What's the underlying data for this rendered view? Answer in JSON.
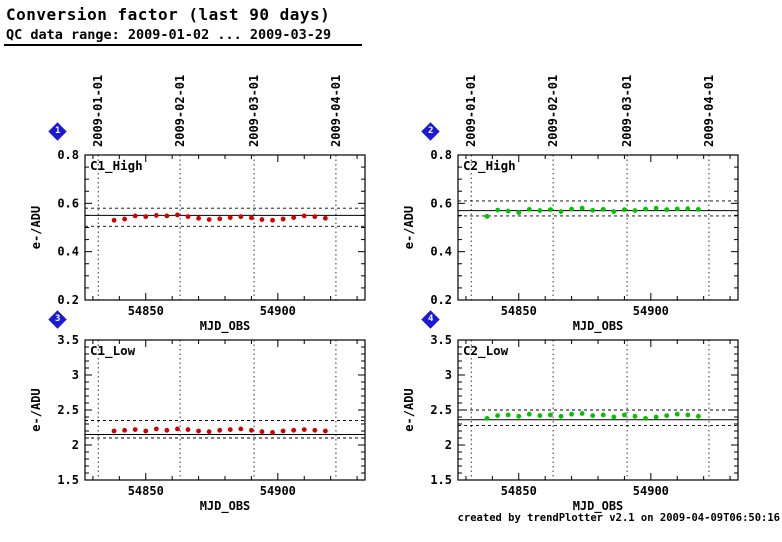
{
  "header": {
    "title": "Conversion factor (last 90 days)",
    "subtitle": "QC data range: 2009-01-02 ... 2009-03-29"
  },
  "footer": {
    "credit": "created by trendPlotter v2.1 on 2009-04-09T06:50:16"
  },
  "chart_data": [
    {
      "badge": "1",
      "type": "scatter",
      "label": "C1_High",
      "marker_color": "#d40000",
      "xlabel": "MJD_OBS",
      "ylabel": "e-/ADU",
      "xlim": [
        54827,
        54933
      ],
      "ylim": [
        0.2,
        0.8
      ],
      "xticks": [
        54850,
        54900
      ],
      "xtick_labels": [
        "54850",
        "54900"
      ],
      "yticks": [
        0.2,
        0.4,
        0.6,
        0.8
      ],
      "ytick_labels": [
        "0.2",
        "0.4",
        "0.6",
        "0.8"
      ],
      "xminor": 10,
      "yminor": 0.05,
      "date_lines": [
        {
          "mjd": 54832,
          "label": "2009-01-01"
        },
        {
          "mjd": 54863,
          "label": "2009-02-01"
        },
        {
          "mjd": 54891,
          "label": "2009-03-01"
        },
        {
          "mjd": 54922,
          "label": "2009-04-01"
        }
      ],
      "mean_line": 0.55,
      "limit_lines": [
        0.58,
        0.505
      ],
      "points": {
        "x": [
          54838,
          54842,
          54846,
          54850,
          54854,
          54858,
          54862,
          54866,
          54870,
          54874,
          54878,
          54882,
          54886,
          54890,
          54894,
          54898,
          54902,
          54906,
          54910,
          54914,
          54918
        ],
        "y": [
          0.53,
          0.535,
          0.548,
          0.545,
          0.55,
          0.548,
          0.552,
          0.545,
          0.538,
          0.533,
          0.536,
          0.541,
          0.545,
          0.54,
          0.533,
          0.53,
          0.535,
          0.541,
          0.548,
          0.545,
          0.538
        ]
      }
    },
    {
      "badge": "2",
      "type": "scatter",
      "label": "C2_High",
      "marker_color": "#00c400",
      "xlabel": "MJD_OBS",
      "ylabel": "e-/ADU",
      "xlim": [
        54827,
        54933
      ],
      "ylim": [
        0.2,
        0.8
      ],
      "xticks": [
        54850,
        54900
      ],
      "xtick_labels": [
        "54850",
        "54900"
      ],
      "yticks": [
        0.2,
        0.4,
        0.6,
        0.8
      ],
      "ytick_labels": [
        "0.2",
        "0.4",
        "0.6",
        "0.8"
      ],
      "xminor": 10,
      "yminor": 0.05,
      "date_lines": [
        {
          "mjd": 54832,
          "label": "2009-01-01"
        },
        {
          "mjd": 54863,
          "label": "2009-02-01"
        },
        {
          "mjd": 54891,
          "label": "2009-03-01"
        },
        {
          "mjd": 54922,
          "label": "2009-04-01"
        }
      ],
      "mean_line": 0.57,
      "limit_lines": [
        0.61,
        0.548
      ],
      "points": {
        "x": [
          54838,
          54842,
          54846,
          54850,
          54854,
          54858,
          54862,
          54866,
          54870,
          54874,
          54878,
          54882,
          54886,
          54890,
          54894,
          54898,
          54902,
          54906,
          54910,
          54914,
          54918
        ],
        "y": [
          0.546,
          0.572,
          0.568,
          0.562,
          0.575,
          0.57,
          0.574,
          0.566,
          0.576,
          0.58,
          0.571,
          0.575,
          0.566,
          0.574,
          0.57,
          0.576,
          0.58,
          0.574,
          0.577,
          0.578,
          0.575
        ]
      }
    },
    {
      "badge": "3",
      "type": "scatter",
      "label": "C1_Low",
      "marker_color": "#d40000",
      "xlabel": "MJD_OBS",
      "ylabel": "e-/ADU",
      "xlim": [
        54827,
        54933
      ],
      "ylim": [
        1.5,
        3.5
      ],
      "xticks": [
        54850,
        54900
      ],
      "xtick_labels": [
        "54850",
        "54900"
      ],
      "yticks": [
        1.5,
        2,
        2.5,
        3,
        3.5
      ],
      "ytick_labels": [
        "1.5",
        "2",
        "2.5",
        "3",
        "3.5"
      ],
      "xminor": 10,
      "yminor": 0.1,
      "date_lines": [
        {
          "mjd": 54832,
          "label": "2009-01-01"
        },
        {
          "mjd": 54863,
          "label": "2009-02-01"
        },
        {
          "mjd": 54891,
          "label": "2009-03-01"
        },
        {
          "mjd": 54922,
          "label": "2009-04-01"
        }
      ],
      "mean_line": 2.15,
      "limit_lines": [
        2.35,
        2.1
      ],
      "points": {
        "x": [
          54838,
          54842,
          54846,
          54850,
          54854,
          54858,
          54862,
          54866,
          54870,
          54874,
          54878,
          54882,
          54886,
          54890,
          54894,
          54898,
          54902,
          54906,
          54910,
          54914,
          54918
        ],
        "y": [
          2.2,
          2.21,
          2.22,
          2.2,
          2.23,
          2.21,
          2.23,
          2.22,
          2.2,
          2.19,
          2.21,
          2.22,
          2.23,
          2.21,
          2.19,
          2.18,
          2.2,
          2.21,
          2.22,
          2.21,
          2.2
        ]
      }
    },
    {
      "badge": "4",
      "type": "scatter",
      "label": "C2_Low",
      "marker_color": "#00c400",
      "xlabel": "MJD_OBS",
      "ylabel": "e-/ADU",
      "xlim": [
        54827,
        54933
      ],
      "ylim": [
        1.5,
        3.5
      ],
      "xticks": [
        54850,
        54900
      ],
      "xtick_labels": [
        "54850",
        "54900"
      ],
      "yticks": [
        1.5,
        2,
        2.5,
        3,
        3.5
      ],
      "ytick_labels": [
        "1.5",
        "2",
        "2.5",
        "3",
        "3.5"
      ],
      "xminor": 10,
      "yminor": 0.1,
      "date_lines": [
        {
          "mjd": 54832,
          "label": "2009-01-01"
        },
        {
          "mjd": 54863,
          "label": "2009-02-01"
        },
        {
          "mjd": 54891,
          "label": "2009-03-01"
        },
        {
          "mjd": 54922,
          "label": "2009-04-01"
        }
      ],
      "mean_line": 2.36,
      "limit_lines": [
        2.5,
        2.28
      ],
      "points": {
        "x": [
          54838,
          54842,
          54846,
          54850,
          54854,
          54858,
          54862,
          54866,
          54870,
          54874,
          54878,
          54882,
          54886,
          54890,
          54894,
          54898,
          54902,
          54906,
          54910,
          54914,
          54918
        ],
        "y": [
          2.38,
          2.42,
          2.43,
          2.41,
          2.44,
          2.42,
          2.43,
          2.41,
          2.44,
          2.45,
          2.42,
          2.43,
          2.4,
          2.43,
          2.41,
          2.38,
          2.4,
          2.42,
          2.44,
          2.43,
          2.41
        ]
      }
    }
  ]
}
